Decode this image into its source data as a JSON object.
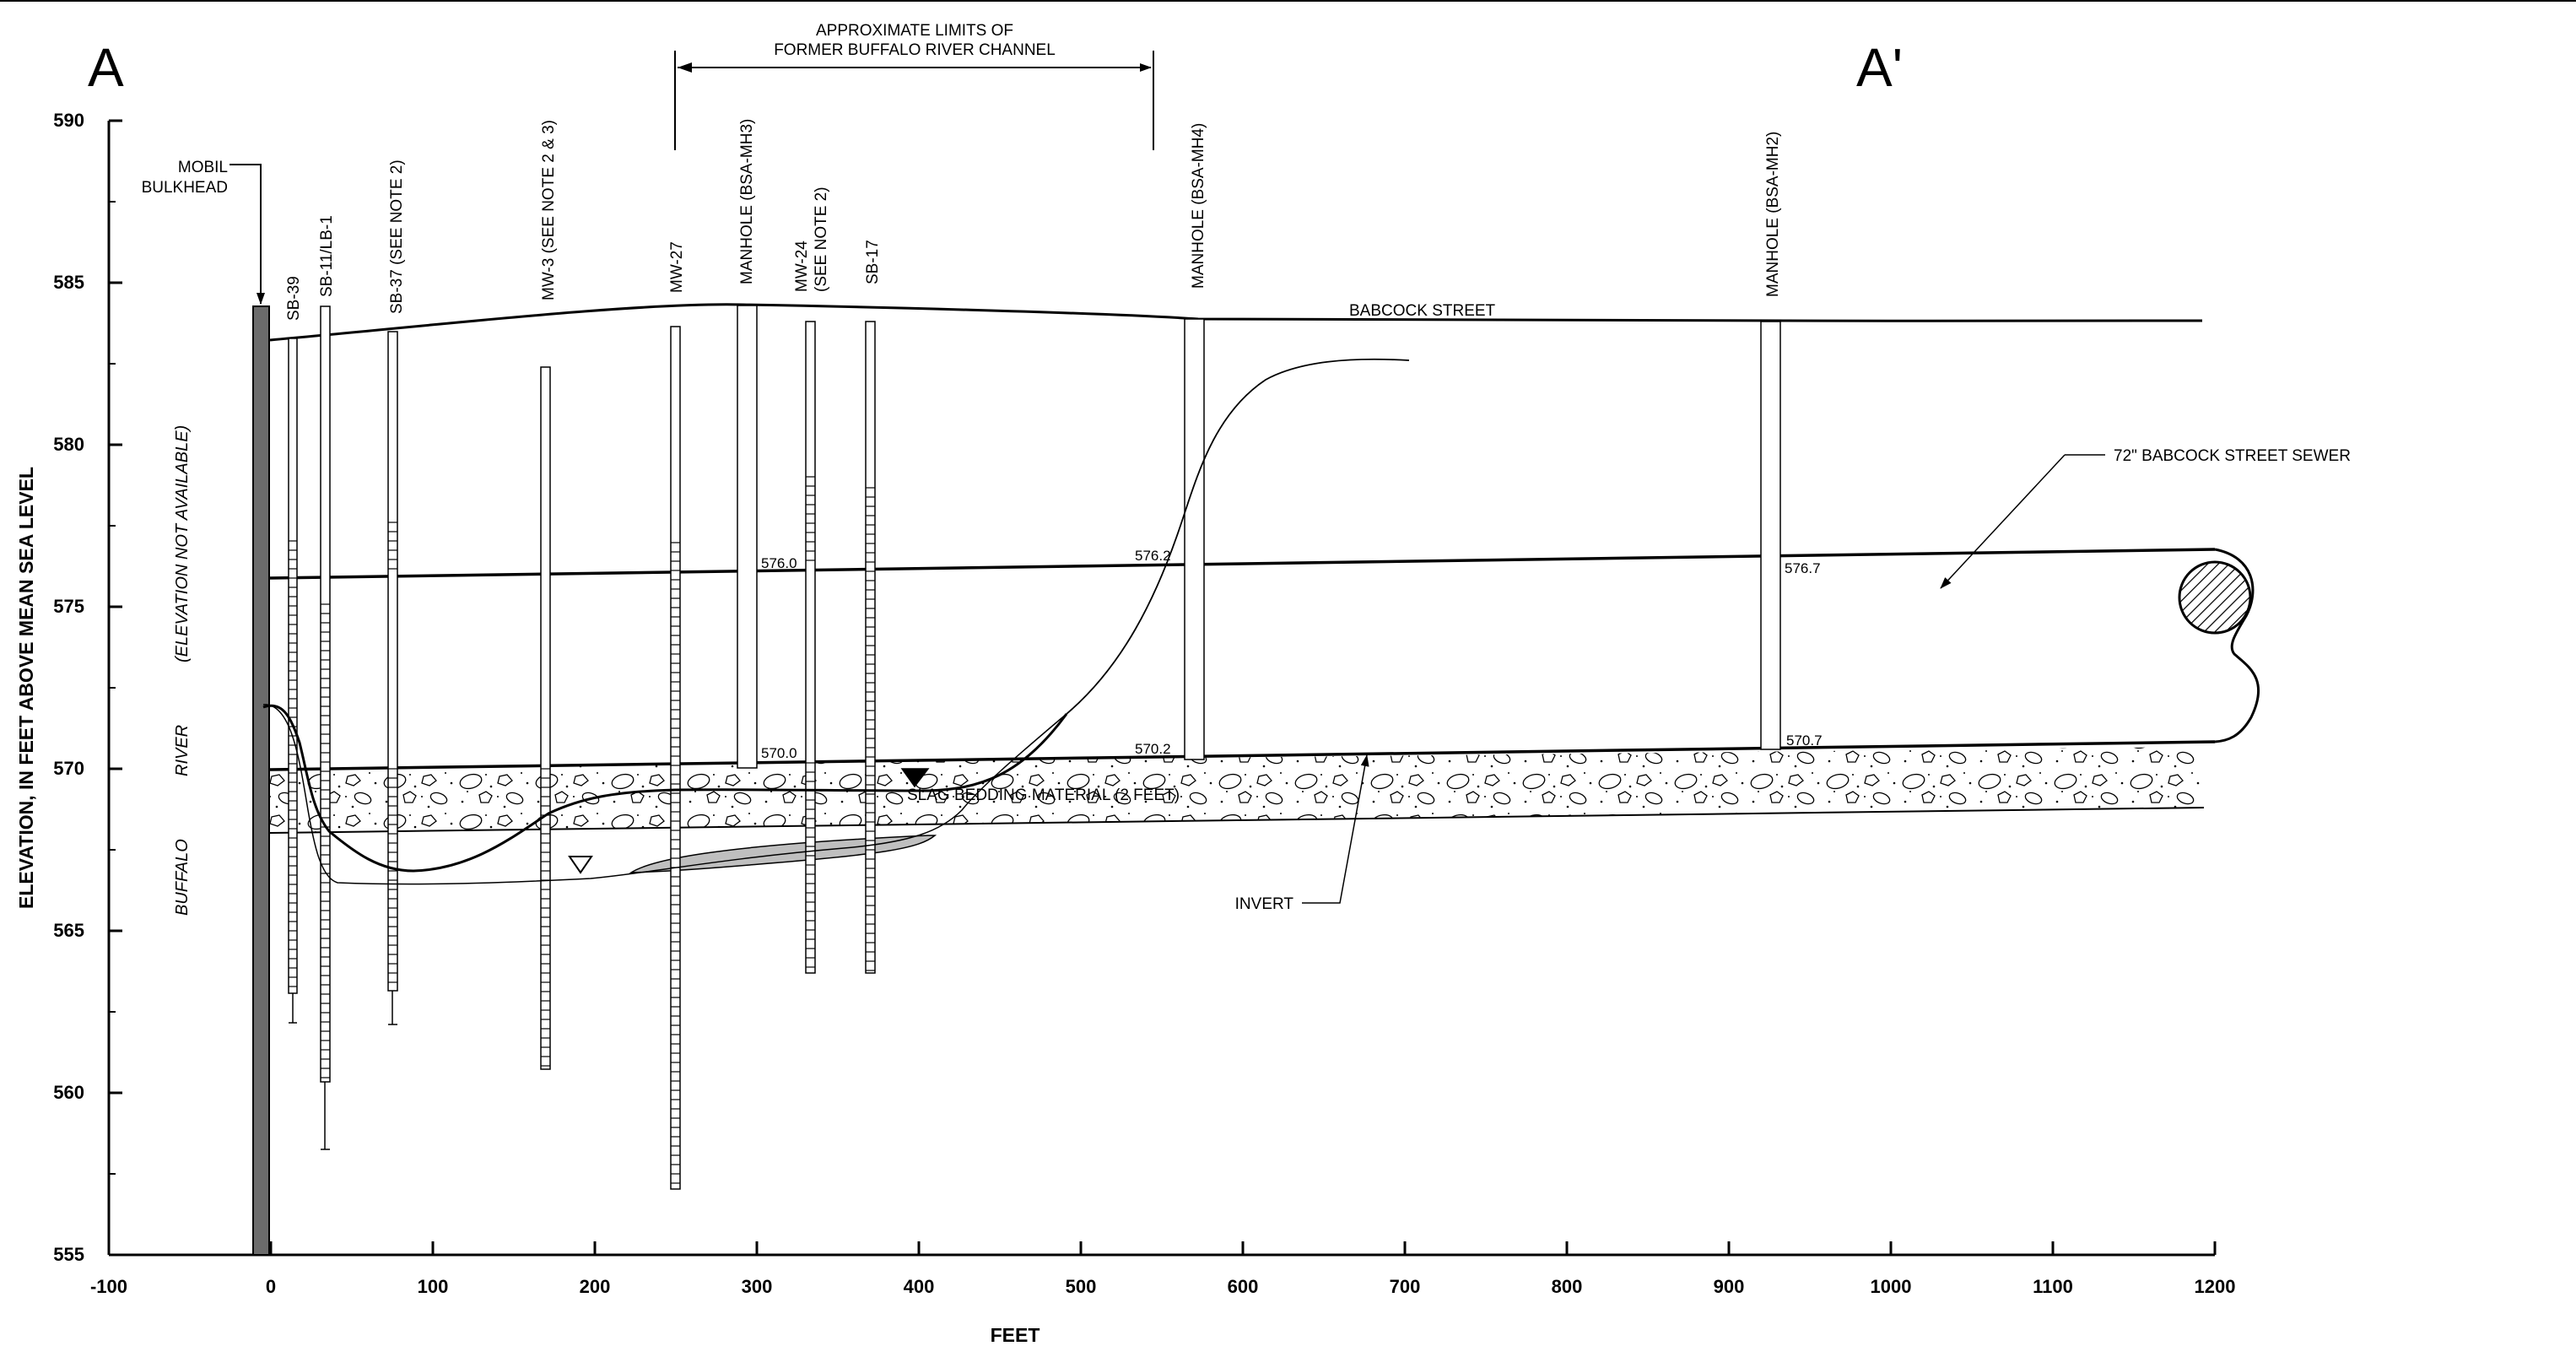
{
  "section_marks": {
    "start": "A",
    "end": "A'"
  },
  "axes": {
    "y_title": "ELEVATION, IN FEET ABOVE MEAN SEA LEVEL",
    "x_title": "FEET",
    "x_ticks": [
      "-100",
      "0",
      "100",
      "200",
      "300",
      "400",
      "500",
      "600",
      "700",
      "800",
      "900",
      "1000",
      "1100",
      "1200"
    ],
    "y_ticks": [
      "555",
      "560",
      "565",
      "570",
      "575",
      "580",
      "585",
      "590"
    ]
  },
  "channel_limits": {
    "line1": "APPROXIMATE LIMITS OF",
    "line2": "FORMER BUFFALO RIVER CHANNEL"
  },
  "bulkhead": {
    "line1": "MOBIL",
    "line2": "BULKHEAD"
  },
  "borings": [
    {
      "id": "sb39",
      "label": "SB-39"
    },
    {
      "id": "sb11",
      "label": "SB-11/LB-1"
    },
    {
      "id": "sb37",
      "label": "SB-37 (SEE NOTE 2)"
    },
    {
      "id": "mw3",
      "label": "MW-3 (SEE NOTE 2 & 3)"
    },
    {
      "id": "mw27",
      "label": "MW-27"
    },
    {
      "id": "mh3",
      "label": "MANHOLE (BSA-MH3)"
    },
    {
      "id": "mw24",
      "label": "MW-24",
      "label2": "(SEE NOTE 2)"
    },
    {
      "id": "sb17",
      "label": "SB-17"
    },
    {
      "id": "mh4",
      "label": "MANHOLE (BSA-MH4)"
    },
    {
      "id": "mh2",
      "label": "MANHOLE (BSA-MH2)"
    }
  ],
  "street_label": "BABCOCK STREET",
  "sewer_label": "72\" BABCOCK STREET SEWER",
  "invert_label": "INVERT",
  "slag_label": "SLAG BEDDING MATERIAL (2 FEET)",
  "river_labels": {
    "buffalo": "BUFFALO",
    "river": "RIVER",
    "note": "(ELEVATION NOT AVAILABLE)"
  },
  "crown_elevations": [
    "576.0",
    "576.2",
    "576.7"
  ],
  "invert_elevations": [
    "570.0",
    "570.2",
    "570.7"
  ]
}
